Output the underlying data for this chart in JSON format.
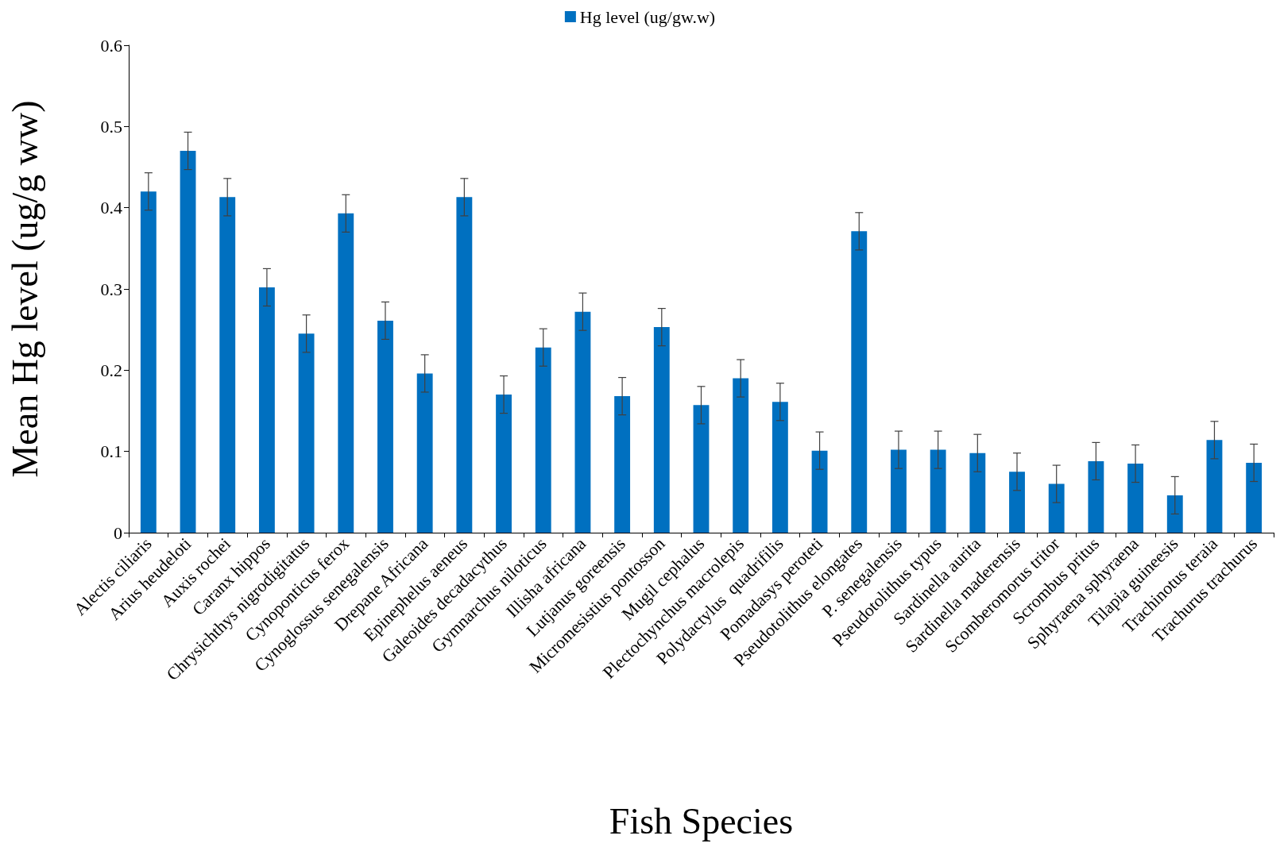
{
  "chart_data": {
    "type": "bar",
    "xlabel": "Fish Species",
    "ylabel": "Mean Hg level (ug/g ww)",
    "categories": [
      "Alectis ciliaris",
      "Arius heudeloti",
      "Auxis rochei",
      "Caranx hippos",
      "Chrysichthys nigrodigitatus",
      "Cynoponticus ferox",
      "Cynoglossus senegalensis",
      "Drepane Africana",
      "Epinephelus aeneus",
      "Galeoides decadacythus",
      "Gymnarchus niloticus",
      "Illisha africana",
      "Lutjanus goreensis",
      "Micromesistius pontosson",
      "Mugil cephalus",
      "Plectochynchus macrolepis",
      "Polydactylus  quadrifilis",
      "Pomadasys peroteti",
      "Pseudotolithus elongates",
      "P. senegalensis",
      "Pseudotolithus typus",
      "Sardinella aurita",
      "Sardinella maderensis",
      "Scomberomorus tritor",
      "Scrombus pritus",
      "Sphyraena sphyraena",
      "Tilapia guineesis",
      "Trachinotus teraia",
      "Trachurus trachurus"
    ],
    "series": [
      {
        "name": "Hg level (ug/gw.w)",
        "color": "#0070c0",
        "values": [
          0.42,
          0.47,
          0.413,
          0.302,
          0.245,
          0.393,
          0.261,
          0.196,
          0.413,
          0.17,
          0.228,
          0.272,
          0.168,
          0.253,
          0.157,
          0.19,
          0.161,
          0.101,
          0.371,
          0.102,
          0.102,
          0.098,
          0.075,
          0.06,
          0.088,
          0.085,
          0.046,
          0.114,
          0.086
        ],
        "errors": [
          0.023,
          0.023,
          0.023,
          0.023,
          0.023,
          0.023,
          0.023,
          0.023,
          0.023,
          0.023,
          0.023,
          0.023,
          0.023,
          0.023,
          0.023,
          0.023,
          0.023,
          0.023,
          0.023,
          0.023,
          0.023,
          0.023,
          0.023,
          0.023,
          0.023,
          0.023,
          0.023,
          0.023,
          0.023
        ]
      }
    ],
    "ylim": [
      0,
      0.6
    ],
    "yticks": [
      0,
      0.1,
      0.2,
      0.3,
      0.4,
      0.5,
      0.6
    ],
    "grid": false,
    "legend": "top"
  }
}
